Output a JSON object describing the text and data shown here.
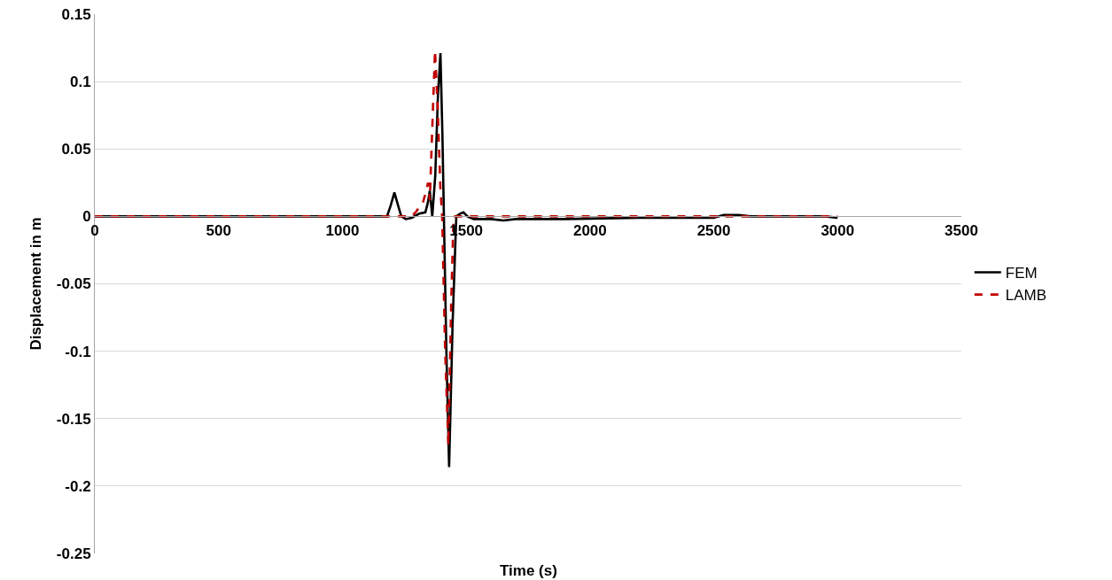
{
  "chart_data": {
    "type": "line",
    "xlabel": "Time (s)",
    "ylabel": "Displacement in m",
    "xlim": [
      0,
      3500
    ],
    "xticks": [
      0,
      500,
      1000,
      1500,
      2000,
      2500,
      3000,
      3500
    ],
    "ylim": [
      -0.25,
      0.15
    ],
    "yticks": [
      {
        "value": -0.25,
        "label": "-0.25"
      },
      {
        "value": -0.2,
        "label": "-0.2"
      },
      {
        "value": -0.15,
        "label": "-0.15"
      },
      {
        "value": -0.1,
        "label": "-0.1"
      },
      {
        "value": -0.05,
        "label": "-0.05"
      },
      0,
      0.05,
      0.1,
      0.15
    ],
    "grid": "y",
    "legend": "right",
    "marker": "none",
    "series": [
      {
        "name": "FEM",
        "color": "#000000",
        "line_style": "solid",
        "x": [
          0,
          1180,
          1195,
          1210,
          1225,
          1238,
          1256,
          1280,
          1310,
          1335,
          1345,
          1353,
          1363,
          1375,
          1386,
          1396,
          1404,
          1410,
          1420,
          1431,
          1445,
          1460,
          1475,
          1489,
          1505,
          1530,
          1600,
          1650,
          1700,
          1900,
          2200,
          2500,
          2540,
          2600,
          2650,
          2950,
          3000
        ],
        "values": [
          0,
          0,
          0.008,
          0.0177,
          0.008,
          0,
          -0.002,
          -0.001,
          0.002,
          0.003,
          0.01,
          0.019,
          0,
          0.03,
          0.09,
          0.121,
          0.06,
          0,
          -0.1,
          -0.186,
          -0.08,
          0,
          0.002,
          0.003,
          0,
          -0.002,
          -0.002,
          -0.003,
          -0.002,
          -0.002,
          -0.001,
          -0.001,
          0.001,
          0.001,
          0,
          0,
          -0.001
        ]
      },
      {
        "name": "LAMB",
        "color": "#c00000",
        "line_style": "dashed",
        "x": [
          0,
          1280,
          1300,
          1310,
          1325,
          1340,
          1346,
          1353,
          1362,
          1374,
          1385,
          1396,
          1403,
          1415,
          1428,
          1440,
          1449,
          1500,
          3000
        ],
        "values": [
          0,
          0,
          0.004,
          0.007,
          0.01,
          0.02,
          0.025,
          0.012,
          0.06,
          0.123,
          0.08,
          0.02,
          0,
          -0.1,
          -0.17,
          -0.06,
          0,
          0,
          0
        ]
      }
    ]
  }
}
